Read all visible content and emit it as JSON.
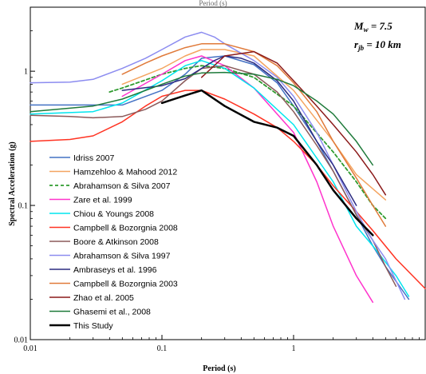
{
  "chart_data": {
    "type": "line",
    "top_caption": "Period (s)",
    "xlabel": "Period (s)",
    "ylabel": "Spectral Acceleration (g)",
    "xscale": "log",
    "yscale": "log",
    "xlim": [
      0.01,
      10
    ],
    "ylim": [
      0.01,
      3.0
    ],
    "x_ticks": [
      {
        "value": 0.01,
        "label": "0.01"
      },
      {
        "value": 0.1,
        "label": "0.1"
      },
      {
        "value": 1,
        "label": "1"
      }
    ],
    "y_ticks": [
      {
        "value": 0.01,
        "label": "0.01"
      },
      {
        "value": 0.1,
        "label": "0.1"
      },
      {
        "value": 1,
        "label": "1"
      }
    ],
    "annotation": {
      "line1": "M",
      "line1_sub": "w",
      "line1_rest": " = 7.5",
      "line2": "r",
      "line2_sub": "jb",
      "line2_rest": " = 10 km"
    },
    "legend_position": "lower-left",
    "grid": false,
    "series": [
      {
        "name": "Idriss 2007",
        "color": "#4472c4",
        "dash": "",
        "width": 1.5,
        "points": [
          [
            0.01,
            0.56
          ],
          [
            0.05,
            0.56
          ],
          [
            0.1,
            0.72
          ],
          [
            0.15,
            0.95
          ],
          [
            0.2,
            1.25
          ],
          [
            0.3,
            1.3
          ],
          [
            0.5,
            1.12
          ],
          [
            0.75,
            0.82
          ],
          [
            1,
            0.55
          ],
          [
            1.5,
            0.3
          ],
          [
            2,
            0.18
          ],
          [
            3,
            0.085
          ],
          [
            4,
            0.05
          ],
          [
            5,
            0.035
          ],
          [
            7.5,
            0.02
          ]
        ]
      },
      {
        "name": "Hamzehloo & Mahood 2012",
        "color": "#f4a460",
        "dash": "",
        "width": 1.5,
        "points": [
          [
            0.05,
            0.8
          ],
          [
            0.1,
            1.05
          ],
          [
            0.15,
            1.3
          ],
          [
            0.2,
            1.45
          ],
          [
            0.3,
            1.45
          ],
          [
            0.5,
            1.3
          ],
          [
            1,
            0.72
          ],
          [
            2,
            0.3
          ],
          [
            3,
            0.17
          ],
          [
            5,
            0.11
          ]
        ]
      },
      {
        "name": "Abrahamson & Silva 2007",
        "color": "#2e9b2e",
        "dash": "4,3",
        "width": 1.8,
        "points": [
          [
            0.04,
            0.7
          ],
          [
            0.05,
            0.75
          ],
          [
            0.1,
            0.95
          ],
          [
            0.15,
            1.05
          ],
          [
            0.2,
            1.1
          ],
          [
            0.3,
            1.05
          ],
          [
            0.5,
            0.9
          ],
          [
            1,
            0.55
          ],
          [
            2,
            0.25
          ],
          [
            3,
            0.15
          ],
          [
            4,
            0.1
          ],
          [
            5,
            0.08
          ]
        ]
      },
      {
        "name": "Zare et al. 1999",
        "color": "#ff33cc",
        "dash": "",
        "width": 1.5,
        "points": [
          [
            0.05,
            0.65
          ],
          [
            0.1,
            0.95
          ],
          [
            0.15,
            1.2
          ],
          [
            0.2,
            1.3
          ],
          [
            0.3,
            1.1
          ],
          [
            0.5,
            0.75
          ],
          [
            1,
            0.35
          ],
          [
            1.5,
            0.15
          ],
          [
            2,
            0.07
          ],
          [
            3,
            0.03
          ],
          [
            4,
            0.019
          ]
        ]
      },
      {
        "name": "Chiou & Youngs 2008",
        "color": "#00e5ee",
        "dash": "",
        "width": 1.5,
        "points": [
          [
            0.01,
            0.48
          ],
          [
            0.03,
            0.5
          ],
          [
            0.05,
            0.58
          ],
          [
            0.1,
            0.85
          ],
          [
            0.15,
            1.1
          ],
          [
            0.2,
            1.2
          ],
          [
            0.3,
            1.05
          ],
          [
            0.5,
            0.75
          ],
          [
            1,
            0.4
          ],
          [
            2,
            0.15
          ],
          [
            3,
            0.07
          ],
          [
            4,
            0.05
          ],
          [
            6,
            0.03
          ],
          [
            7.5,
            0.021
          ]
        ]
      },
      {
        "name": "Campbell & Bozorgnia 2008",
        "color": "#ff3322",
        "dash": "",
        "width": 1.5,
        "points": [
          [
            0.01,
            0.3
          ],
          [
            0.02,
            0.31
          ],
          [
            0.03,
            0.33
          ],
          [
            0.05,
            0.42
          ],
          [
            0.075,
            0.55
          ],
          [
            0.1,
            0.65
          ],
          [
            0.15,
            0.72
          ],
          [
            0.2,
            0.72
          ],
          [
            0.3,
            0.62
          ],
          [
            0.5,
            0.48
          ],
          [
            0.75,
            0.38
          ],
          [
            1,
            0.3
          ],
          [
            1.5,
            0.2
          ],
          [
            2,
            0.14
          ],
          [
            3,
            0.09
          ],
          [
            4,
            0.065
          ],
          [
            6,
            0.04
          ],
          [
            10,
            0.024
          ]
        ]
      },
      {
        "name": "Boore & Atkinson 2008",
        "color": "#8b5a5a",
        "dash": "",
        "width": 1.5,
        "points": [
          [
            0.01,
            0.47
          ],
          [
            0.02,
            0.46
          ],
          [
            0.03,
            0.45
          ],
          [
            0.05,
            0.46
          ],
          [
            0.075,
            0.52
          ],
          [
            0.1,
            0.6
          ],
          [
            0.15,
            0.85
          ],
          [
            0.2,
            1.05
          ],
          [
            0.3,
            1.1
          ],
          [
            0.5,
            0.95
          ],
          [
            0.75,
            0.7
          ],
          [
            1,
            0.5
          ],
          [
            1.5,
            0.28
          ],
          [
            2,
            0.18
          ],
          [
            3,
            0.085
          ],
          [
            4,
            0.055
          ],
          [
            5,
            0.035
          ],
          [
            6,
            0.025
          ]
        ]
      },
      {
        "name": "Abrahamson & Silva 1997",
        "color": "#8c8cf0",
        "dash": "",
        "width": 1.5,
        "points": [
          [
            0.01,
            0.82
          ],
          [
            0.02,
            0.83
          ],
          [
            0.03,
            0.87
          ],
          [
            0.05,
            1.05
          ],
          [
            0.075,
            1.25
          ],
          [
            0.1,
            1.45
          ],
          [
            0.15,
            1.8
          ],
          [
            0.2,
            1.95
          ],
          [
            0.25,
            1.8
          ],
          [
            0.3,
            1.6
          ],
          [
            0.5,
            1.2
          ],
          [
            0.75,
            0.9
          ],
          [
            1,
            0.65
          ],
          [
            1.5,
            0.35
          ],
          [
            2,
            0.2
          ],
          [
            3,
            0.09
          ],
          [
            4,
            0.055
          ],
          [
            5,
            0.04
          ],
          [
            7,
            0.02
          ]
        ]
      },
      {
        "name": "Ambraseys et al. 1996",
        "color": "#2b2b80",
        "dash": "",
        "width": 1.5,
        "points": [
          [
            0.05,
            0.72
          ],
          [
            0.1,
            0.78
          ],
          [
            0.15,
            0.88
          ],
          [
            0.2,
            1.05
          ],
          [
            0.25,
            1.2
          ],
          [
            0.3,
            1.3
          ],
          [
            0.4,
            1.25
          ],
          [
            0.5,
            1.15
          ],
          [
            0.75,
            0.85
          ],
          [
            1,
            0.6
          ],
          [
            1.5,
            0.3
          ],
          [
            2,
            0.2
          ],
          [
            3,
            0.1
          ]
        ]
      },
      {
        "name": "Campbell & Bozorgnia 2003",
        "color": "#e07a3a",
        "dash": "",
        "width": 1.5,
        "points": [
          [
            0.05,
            0.95
          ],
          [
            0.075,
            1.15
          ],
          [
            0.1,
            1.3
          ],
          [
            0.15,
            1.5
          ],
          [
            0.2,
            1.6
          ],
          [
            0.3,
            1.6
          ],
          [
            0.5,
            1.4
          ],
          [
            0.75,
            1.1
          ],
          [
            1,
            0.82
          ],
          [
            1.5,
            0.5
          ],
          [
            2,
            0.3
          ],
          [
            3,
            0.16
          ],
          [
            4,
            0.1
          ],
          [
            5,
            0.07
          ]
        ]
      },
      {
        "name": "Zhao et al. 2005",
        "color": "#8b1a1a",
        "dash": "",
        "width": 1.5,
        "points": [
          [
            0.2,
            0.9
          ],
          [
            0.3,
            1.3
          ],
          [
            0.5,
            1.4
          ],
          [
            0.75,
            1.15
          ],
          [
            1,
            0.85
          ],
          [
            1.5,
            0.55
          ],
          [
            2,
            0.4
          ],
          [
            3,
            0.25
          ],
          [
            4,
            0.17
          ],
          [
            5,
            0.12
          ]
        ]
      },
      {
        "name": "Ghasemi et al., 2008",
        "color": "#1e7a3a",
        "dash": "",
        "width": 1.5,
        "points": [
          [
            0.01,
            0.5
          ],
          [
            0.03,
            0.55
          ],
          [
            0.05,
            0.62
          ],
          [
            0.1,
            0.8
          ],
          [
            0.15,
            0.92
          ],
          [
            0.2,
            0.97
          ],
          [
            0.3,
            0.98
          ],
          [
            0.5,
            0.95
          ],
          [
            0.75,
            0.87
          ],
          [
            1,
            0.78
          ],
          [
            1.5,
            0.6
          ],
          [
            2,
            0.48
          ],
          [
            3,
            0.3
          ],
          [
            4,
            0.2
          ]
        ]
      },
      {
        "name": "This Study",
        "color": "#000000",
        "dash": "",
        "width": 2.5,
        "points": [
          [
            0.1,
            0.58
          ],
          [
            0.15,
            0.66
          ],
          [
            0.2,
            0.72
          ],
          [
            0.3,
            0.55
          ],
          [
            0.5,
            0.42
          ],
          [
            0.75,
            0.38
          ],
          [
            1,
            0.33
          ],
          [
            1.5,
            0.2
          ],
          [
            2,
            0.13
          ],
          [
            3,
            0.08
          ],
          [
            4,
            0.06
          ]
        ]
      }
    ]
  }
}
